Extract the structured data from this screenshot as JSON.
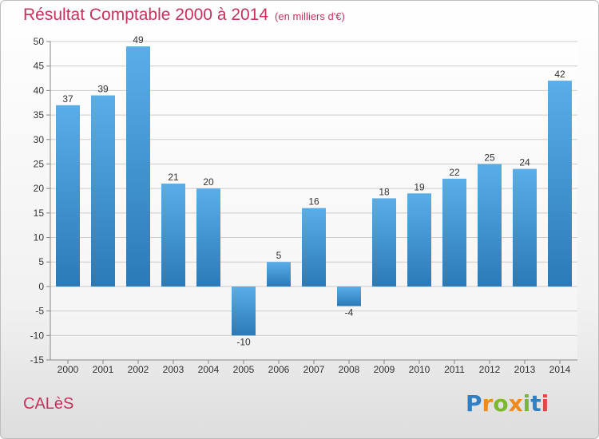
{
  "title": {
    "main": "Résultat Comptable 2000 à 2014",
    "sub": "(en milliers d'€)"
  },
  "commune": "CALèS",
  "logo": {
    "letters": [
      "P",
      "r",
      "o",
      "x",
      "i",
      "t",
      "i"
    ],
    "colors": [
      "#2e7fc4",
      "#f08a1c",
      "#7cb82f",
      "#f08a1c",
      "#7cb82f",
      "#2e7fc4",
      "#e04848"
    ]
  },
  "colors": {
    "title": "#c8315c",
    "bar_light": "#5aaee8",
    "bar_dark": "#2a7ab8",
    "grid": "#cccccc"
  },
  "chart_data": {
    "type": "bar",
    "categories": [
      "2000",
      "2001",
      "2002",
      "2003",
      "2004",
      "2005",
      "2006",
      "2007",
      "2008",
      "2009",
      "2010",
      "2011",
      "2012",
      "2013",
      "2014"
    ],
    "values": [
      37,
      39,
      49,
      21,
      20,
      -10,
      5,
      16,
      -4,
      18,
      19,
      22,
      25,
      24,
      42
    ],
    "ylim": [
      -15,
      50
    ],
    "yticks": [
      -15,
      -10,
      -5,
      0,
      5,
      10,
      15,
      20,
      25,
      30,
      35,
      40,
      45,
      50
    ],
    "grid": true,
    "legend": "none"
  }
}
